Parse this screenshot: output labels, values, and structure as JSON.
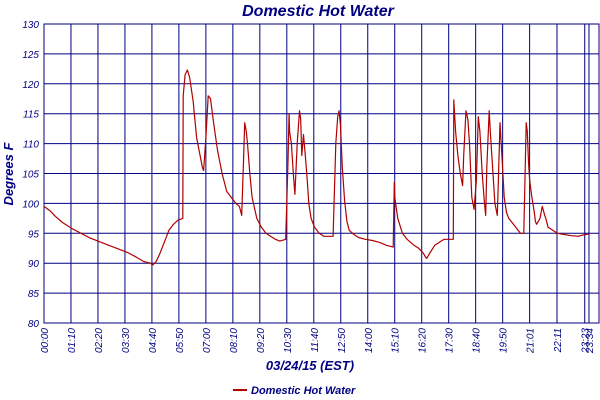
{
  "chart_data": {
    "type": "line",
    "title": "Domestic Hot Water",
    "xlabel": "03/24/15 (EST)",
    "ylabel": "Degrees F",
    "ylim": [
      80,
      130
    ],
    "yticks": [
      80,
      85,
      90,
      95,
      100,
      105,
      110,
      115,
      120,
      125,
      130
    ],
    "x_range_hours": [
      0,
      24
    ],
    "xticks": [
      {
        "hour": 0.0,
        "label": "00:00"
      },
      {
        "hour": 1.1667,
        "label": "01:10"
      },
      {
        "hour": 2.3333,
        "label": "02:20"
      },
      {
        "hour": 3.5,
        "label": "03:30"
      },
      {
        "hour": 4.6667,
        "label": "04:40"
      },
      {
        "hour": 5.8333,
        "label": "05:50"
      },
      {
        "hour": 7.0,
        "label": "07:00"
      },
      {
        "hour": 8.1667,
        "label": "08:10"
      },
      {
        "hour": 9.3333,
        "label": "09:20"
      },
      {
        "hour": 10.5,
        "label": "10:30"
      },
      {
        "hour": 11.6667,
        "label": "11:40"
      },
      {
        "hour": 12.8333,
        "label": "12:50"
      },
      {
        "hour": 14.0,
        "label": "14:00"
      },
      {
        "hour": 15.1667,
        "label": "15:10"
      },
      {
        "hour": 16.3333,
        "label": "16:20"
      },
      {
        "hour": 17.5,
        "label": "17:30"
      },
      {
        "hour": 18.6667,
        "label": "18:40"
      },
      {
        "hour": 19.8333,
        "label": "19:50"
      },
      {
        "hour": 21.0,
        "label": "21:01"
      },
      {
        "hour": 22.1833,
        "label": "22:11"
      },
      {
        "hour": 23.3833,
        "label": "23:23"
      },
      {
        "hour": 23.5667,
        "label": "23:34"
      }
    ],
    "grid": true,
    "legend_position": "bottom-center",
    "series": [
      {
        "name": "Domestic Hot Water",
        "color": "#b00000",
        "x": [
          0.0,
          0.25,
          0.5,
          0.8,
          1.2,
          1.6,
          2.0,
          2.4,
          2.8,
          3.2,
          3.6,
          4.0,
          4.3,
          4.6,
          4.7,
          4.85,
          5.0,
          5.2,
          5.4,
          5.6,
          5.8,
          6.0,
          6.02,
          6.1,
          6.2,
          6.3,
          6.45,
          6.6,
          6.75,
          6.85,
          6.9,
          7.0,
          7.1,
          7.2,
          7.35,
          7.5,
          7.7,
          7.9,
          8.1,
          8.3,
          8.45,
          8.55,
          8.62,
          8.68,
          8.75,
          8.8,
          8.9,
          9.0,
          9.2,
          9.4,
          9.6,
          9.8,
          10.0,
          10.2,
          10.45,
          10.55,
          10.6,
          10.62,
          10.7,
          10.78,
          10.85,
          10.95,
          11.05,
          11.1,
          11.15,
          11.22,
          11.3,
          11.38,
          11.45,
          11.55,
          11.7,
          11.9,
          12.1,
          12.3,
          12.5,
          12.62,
          12.7,
          12.76,
          12.82,
          12.9,
          13.0,
          13.1,
          13.2,
          13.4,
          13.6,
          13.9,
          14.2,
          14.5,
          14.8,
          15.1,
          15.15,
          15.17,
          15.3,
          15.5,
          15.7,
          16.0,
          16.2,
          16.4,
          16.5,
          16.55,
          16.7,
          16.9,
          17.1,
          17.3,
          17.5,
          17.7,
          17.72,
          17.8,
          17.9,
          18.0,
          18.1,
          18.15,
          18.25,
          18.33,
          18.4,
          18.5,
          18.6,
          18.7,
          18.78,
          18.85,
          18.95,
          19.05,
          19.1,
          19.15,
          19.25,
          19.3,
          19.4,
          19.5,
          19.6,
          19.65,
          19.72,
          19.8,
          19.9,
          20.0,
          20.1,
          20.2,
          20.3,
          20.4,
          20.5,
          20.6,
          20.75,
          20.85,
          20.9,
          20.95,
          21.0,
          21.1,
          21.2,
          21.25,
          21.3,
          21.45,
          21.55,
          21.65,
          21.7,
          21.8,
          22.0,
          22.2,
          22.5,
          22.8,
          23.1,
          23.3,
          23.55
        ],
        "y": [
          99.5,
          98.8,
          97.8,
          96.8,
          95.8,
          95.0,
          94.2,
          93.6,
          93.0,
          92.4,
          91.8,
          91.0,
          90.3,
          90.0,
          89.7,
          90.3,
          91.5,
          93.5,
          95.5,
          96.5,
          97.2,
          97.5,
          118.0,
          121.5,
          122.3,
          121.0,
          117.0,
          111.0,
          108.0,
          106.0,
          105.5,
          111.0,
          118.0,
          117.5,
          113.0,
          109.0,
          105.0,
          102.0,
          101.0,
          100.0,
          99.5,
          98.0,
          106.0,
          113.5,
          112.0,
          110.0,
          105.0,
          101.0,
          97.5,
          96.0,
          95.0,
          94.5,
          94.0,
          93.7,
          94.0,
          107.0,
          115.0,
          112.0,
          110.0,
          105.0,
          101.5,
          110.0,
          115.5,
          114.0,
          108.0,
          111.5,
          108.0,
          104.0,
          100.0,
          97.5,
          96.0,
          95.0,
          94.5,
          94.5,
          94.5,
          110.0,
          114.5,
          115.5,
          113.0,
          106.0,
          100.5,
          97.0,
          95.5,
          94.8,
          94.3,
          94.0,
          93.8,
          93.5,
          93.0,
          92.7,
          103.5,
          101.0,
          97.5,
          95.0,
          94.0,
          93.0,
          92.5,
          91.7,
          91.0,
          90.8,
          91.8,
          93.0,
          93.5,
          94.0,
          94.0,
          94.0,
          117.3,
          112.0,
          108.0,
          105.0,
          103.0,
          108.0,
          115.5,
          114.0,
          110.0,
          101.0,
          99.0,
          104.0,
          114.5,
          112.0,
          105.0,
          100.0,
          98.0,
          106.0,
          115.5,
          112.0,
          106.0,
          100.0,
          98.0,
          104.0,
          113.5,
          108.0,
          101.0,
          98.5,
          97.5,
          97.0,
          96.5,
          96.0,
          95.5,
          95.0,
          95.0,
          113.5,
          112.0,
          107.0,
          104.0,
          101.0,
          98.5,
          97.0,
          96.5,
          97.5,
          99.5,
          98.0,
          97.5,
          96.0,
          95.5,
          95.0,
          94.8,
          94.6,
          94.5,
          94.7,
          94.9
        ]
      }
    ]
  }
}
